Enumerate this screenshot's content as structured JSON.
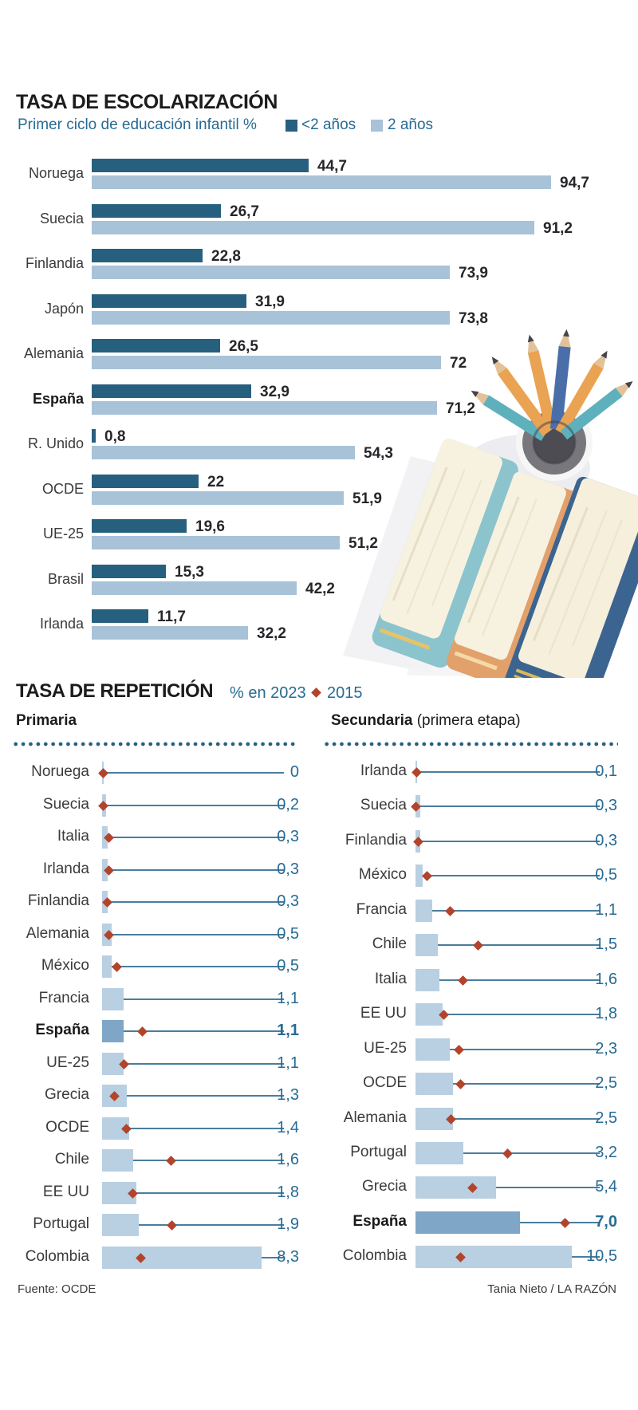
{
  "colors": {
    "dark_blue": "#27607f",
    "light_blue": "#a8c2d8",
    "rep_bar": "#b9cfe2",
    "rep_bar_spain": "#7fa6c7",
    "diamond_red": "#b2442c",
    "blue_text": "#276b93",
    "line_blue": "#4a7d9e",
    "dot_separator": "#27607f"
  },
  "escolarizacion": {
    "title": "TASA DE ESCOLARIZACIÓN",
    "subtitle": "Primer ciclo de educación infantil %",
    "legend": [
      {
        "label": "<2 años",
        "color": "#27607f"
      },
      {
        "label": "2 años",
        "color": "#a8c2d8"
      }
    ]
  },
  "repeticion": {
    "title": "TASA DE REPETICIÓN",
    "subtitle_2023": "% en 2023",
    "legend_2015": "2015",
    "col_primaria": "Primaria",
    "col_secundaria_bold": "Secundaria",
    "col_secundaria_rest": " (primera etapa)"
  },
  "footer": {
    "source": "Fuente: OCDE",
    "credit": "Tania Nieto / LA RAZÓN"
  },
  "chart_data": [
    {
      "id": "escolarizacion",
      "type": "bar",
      "title": "TASA DE ESCOLARIZACIÓN — Primer ciclo de educación infantil %",
      "orientation": "horizontal",
      "xlim": [
        0,
        100
      ],
      "categories": [
        "Noruega",
        "Suecia",
        "Finlandia",
        "Japón",
        "Alemania",
        "España",
        "R. Unido",
        "OCDE",
        "UE-25",
        "Brasil",
        "Irlanda"
      ],
      "bold_category": "España",
      "series": [
        {
          "name": "<2 años",
          "values": [
            44.7,
            26.7,
            22.8,
            31.9,
            26.5,
            32.9,
            0.8,
            22,
            19.6,
            15.3,
            11.7
          ],
          "labels": [
            "44,7",
            "26,7",
            "22,8",
            "31,9",
            "26,5",
            "32,9",
            "0,8",
            "22",
            "19,6",
            "15,3",
            "11,7"
          ]
        },
        {
          "name": "2 años",
          "values": [
            94.7,
            91.2,
            73.9,
            73.8,
            72,
            71.2,
            54.3,
            51.9,
            51.2,
            42.2,
            32.2
          ],
          "labels": [
            "94,7",
            "91,2",
            "73,9",
            "73,8",
            "72",
            "71,2",
            "54,3",
            "51,9",
            "51,2",
            "42,2",
            "32,2"
          ]
        }
      ]
    },
    {
      "id": "repeticion-primaria",
      "type": "bar",
      "title": "TASA DE REPETICIÓN — Primaria — % en 2023 (barra) y 2015 (rombo, estimado)",
      "orientation": "horizontal",
      "xlim": [
        0,
        9
      ],
      "categories": [
        "Noruega",
        "Suecia",
        "Italia",
        "Irlanda",
        "Finlandia",
        "Alemania",
        "México",
        "Francia",
        "España",
        "UE-25",
        "Grecia",
        "OCDE",
        "Chile",
        "EE UU",
        "Portugal",
        "Colombia"
      ],
      "bold_category": "España",
      "values_2023": [
        0,
        0.2,
        0.3,
        0.3,
        0.3,
        0.5,
        0.5,
        1.1,
        1.1,
        1.1,
        1.3,
        1.4,
        1.6,
        1.8,
        1.9,
        8.3
      ],
      "labels_2023": [
        "0",
        "0,2",
        "0,3",
        "0,3",
        "0,3",
        "0,5",
        "0,5",
        "1,1",
        "1,1",
        "1,1",
        "1,3",
        "1,4",
        "1,6",
        "1,8",
        "1,9",
        "8,3"
      ],
      "values_2015_estimated": [
        0.05,
        0.05,
        0.35,
        0.35,
        0.25,
        0.35,
        0.75,
        null,
        2.1,
        1.15,
        0.65,
        1.25,
        3.6,
        1.6,
        3.65,
        2.0
      ]
    },
    {
      "id": "repeticion-secundaria",
      "type": "bar",
      "title": "TASA DE REPETICIÓN — Secundaria (primera etapa) — % en 2023 (barra) y 2015 (rombo, estimado)",
      "orientation": "horizontal",
      "xlim": [
        0,
        11
      ],
      "categories": [
        "Irlanda",
        "Suecia",
        "Finlandia",
        "México",
        "Francia",
        "Chile",
        "Italia",
        "EE UU",
        "UE-25",
        "OCDE",
        "Alemania",
        "Portugal",
        "Grecia",
        "España",
        "Colombia"
      ],
      "bold_category": "España",
      "values_2023": [
        0.1,
        0.3,
        0.3,
        0.5,
        1.1,
        1.5,
        1.6,
        1.8,
        2.3,
        2.5,
        2.5,
        3.2,
        5.4,
        7.0,
        10.5
      ],
      "labels_2023": [
        "0,1",
        "0,3",
        "0,3",
        "0,5",
        "1,1",
        "1,5",
        "1,6",
        "1,8",
        "2,3",
        "2,5",
        "2,5",
        "3,2",
        "5,4",
        "7,0",
        "10,5"
      ],
      "values_2015_estimated": [
        0.1,
        0.05,
        0.2,
        0.8,
        2.3,
        4.2,
        3.2,
        1.9,
        2.9,
        3.0,
        2.4,
        6.2,
        3.8,
        10.0,
        3.0
      ]
    }
  ]
}
